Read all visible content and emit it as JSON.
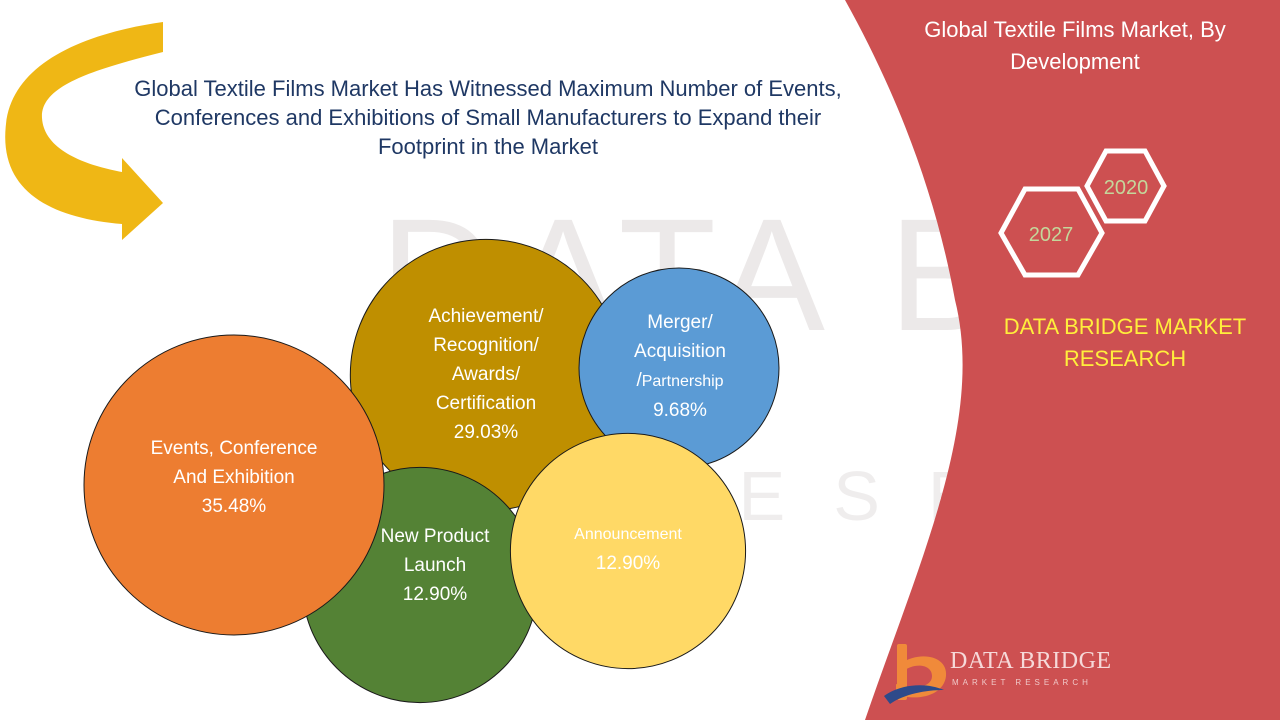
{
  "headline": "Global Textile Films Market Has Witnessed Maximum Number of Events, Conferences and Exhibitions of Small Manufacturers to Expand their Footprint in the Market",
  "side_panel": {
    "title": "Global Textile Films Market, By Development",
    "year_badges": [
      "2020",
      "2027"
    ],
    "brand": "DATA BRIDGE MARKET RESEARCH"
  },
  "logo": {
    "name": "DATA BRIDGE",
    "tagline": "MARKET RESEARCH"
  },
  "watermark": {
    "line1": "DATA BRIDGE",
    "line2": "RESEARCH"
  },
  "colors": {
    "panel": "#cd5051",
    "headline_text": "#1f3864",
    "arrow": "#efb715",
    "brand_text": "#ffee3c",
    "badge_text": "#c4d79b"
  },
  "chart_data": {
    "type": "bubble",
    "title": "Global Textile Films Market, By Development",
    "slices": [
      {
        "label": "Events, Conference And Exhibition",
        "value": 35.48,
        "display": "35.48%",
        "color": "#ed7d31"
      },
      {
        "label": "Achievement/ Recognition/ Awards/ Certification",
        "value": 29.03,
        "display": "29.03%",
        "color": "#bf8f00"
      },
      {
        "label": "New Product Launch",
        "value": 12.9,
        "display": "12.90%",
        "color": "#548235"
      },
      {
        "label": "Announcement",
        "value": 12.9,
        "display": "12.90%",
        "color": "#ffd966"
      },
      {
        "label": "Merger/ Acquisition /Partnership",
        "value": 9.68,
        "display": "9.68%",
        "color": "#5b9bd5"
      }
    ]
  }
}
